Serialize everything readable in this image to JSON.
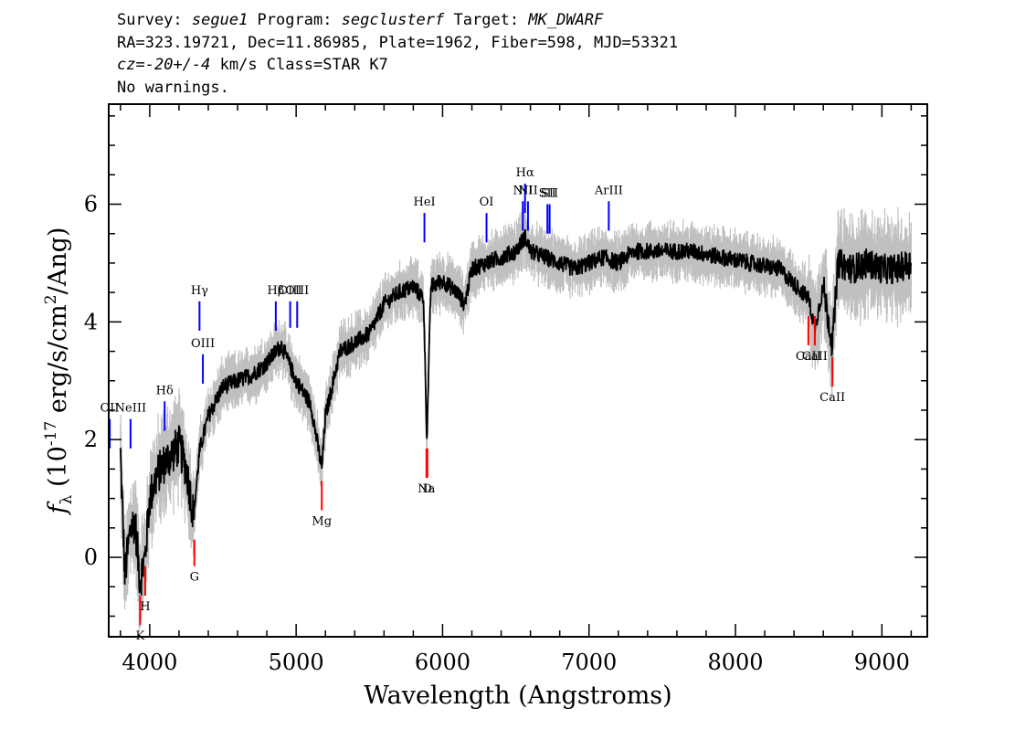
{
  "header": {
    "survey_label": "Survey: ",
    "survey": "segue1",
    "program_label": " Program: ",
    "program": "segclusterf",
    "target_label": " Target: ",
    "target": "MK_DWARF",
    "line2": "RA=323.19721, Dec=11.86985, Plate=1962, Fiber=598, MJD=53321",
    "cz_label": "cz",
    "cz_eq": "=",
    "cz_value": "-20+/-4",
    "cz_rest": " km/s Class=STAR K7",
    "warnings": "No warnings."
  },
  "chart_data": {
    "type": "line",
    "xlabel": "Wavelength (Angstroms)",
    "ylabel_prefix": "f",
    "ylabel_sub": "λ",
    "ylabel_rest": " (10",
    "ylabel_exp": "-17",
    "ylabel_units": " erg/s/cm",
    "ylabel_sq": "2",
    "ylabel_end": "/Ang)",
    "xlim": [
      3720,
      9310
    ],
    "ylim": [
      -1.35,
      7.7
    ],
    "xticks": [
      4000,
      5000,
      6000,
      7000,
      8000,
      9000
    ],
    "xtick_labels": [
      "4000",
      "5000",
      "6000",
      "7000",
      "8000",
      "9000"
    ],
    "yticks": [
      0,
      2,
      4,
      6
    ],
    "ytick_labels": [
      "0",
      "2",
      "4",
      "6"
    ],
    "colors": {
      "flux": "#000000",
      "error": "#c0c0c0",
      "emission": "#0000ff",
      "absorption": "#ff0000"
    },
    "flux_anchors": [
      [
        3800,
        1.75
      ],
      [
        3830,
        -0.3
      ],
      [
        3870,
        0.5
      ],
      [
        3900,
        0.6
      ],
      [
        3933,
        -0.4
      ],
      [
        3968,
        0.0
      ],
      [
        4000,
        1.0
      ],
      [
        4050,
        1.4
      ],
      [
        4100,
        1.6
      ],
      [
        4200,
        1.9
      ],
      [
        4250,
        1.5
      ],
      [
        4300,
        0.7
      ],
      [
        4340,
        1.8
      ],
      [
        4400,
        2.4
      ],
      [
        4500,
        2.9
      ],
      [
        4600,
        3.0
      ],
      [
        4700,
        3.1
      ],
      [
        4800,
        3.3
      ],
      [
        4861,
        3.5
      ],
      [
        4900,
        3.6
      ],
      [
        4950,
        3.3
      ],
      [
        5000,
        3.0
      ],
      [
        5100,
        2.6
      ],
      [
        5175,
        1.5
      ],
      [
        5200,
        2.4
      ],
      [
        5300,
        3.5
      ],
      [
        5500,
        3.8
      ],
      [
        5600,
        4.3
      ],
      [
        5700,
        4.5
      ],
      [
        5800,
        4.6
      ],
      [
        5870,
        4.4
      ],
      [
        5893,
        2.0
      ],
      [
        5920,
        4.6
      ],
      [
        6000,
        4.7
      ],
      [
        6100,
        4.5
      ],
      [
        6150,
        4.3
      ],
      [
        6200,
        4.9
      ],
      [
        6300,
        5.0
      ],
      [
        6400,
        5.1
      ],
      [
        6500,
        5.2
      ],
      [
        6563,
        5.45
      ],
      [
        6600,
        5.2
      ],
      [
        6700,
        5.1
      ],
      [
        6800,
        5.0
      ],
      [
        6900,
        4.9
      ],
      [
        7000,
        5.0
      ],
      [
        7100,
        5.1
      ],
      [
        7200,
        5.0
      ],
      [
        7300,
        5.2
      ],
      [
        7500,
        5.2
      ],
      [
        7700,
        5.2
      ],
      [
        7900,
        5.1
      ],
      [
        8100,
        5.0
      ],
      [
        8300,
        4.9
      ],
      [
        8498,
        4.4
      ],
      [
        8542,
        3.9
      ],
      [
        8600,
        4.6
      ],
      [
        8662,
        3.6
      ],
      [
        8700,
        5.0
      ],
      [
        8800,
        4.9
      ],
      [
        8900,
        5.0
      ],
      [
        9000,
        4.9
      ],
      [
        9100,
        4.9
      ],
      [
        9200,
        5.0
      ]
    ],
    "emission_lines": [
      {
        "label": "OII",
        "x": 3727,
        "y0": 1.85,
        "y1": 2.35
      },
      {
        "label": "NeIII",
        "x": 3869,
        "y0": 1.85,
        "y1": 2.35
      },
      {
        "label": "Hδ",
        "x": 4102,
        "y0": 2.15,
        "y1": 2.65
      },
      {
        "label": "Hγ",
        "x": 4340,
        "y0": 3.85,
        "y1": 4.35
      },
      {
        "label": "OIII",
        "x": 4363,
        "y0": 2.95,
        "y1": 3.45
      },
      {
        "label": "Hβ",
        "x": 4861,
        "y0": 3.85,
        "y1": 4.35
      },
      {
        "label": "OIII",
        "x": 4959,
        "y0": 3.9,
        "y1": 4.35
      },
      {
        "label": "OIII",
        "x": 5007,
        "y0": 3.9,
        "y1": 4.35
      },
      {
        "label": "HeI",
        "x": 5876,
        "y0": 5.35,
        "y1": 5.85
      },
      {
        "label": "OI",
        "x": 6300,
        "y0": 5.35,
        "y1": 5.85
      },
      {
        "label": "NII",
        "x": 6548,
        "y0": 5.55,
        "y1": 6.05
      },
      {
        "label": "Hα",
        "x": 6563,
        "y0": 5.85,
        "y1": 6.35
      },
      {
        "label": "NII",
        "x": 6583,
        "y0": 5.55,
        "y1": 6.05
      },
      {
        "label": "SII",
        "x": 6716,
        "y0": 5.5,
        "y1": 6.0
      },
      {
        "label": "SII",
        "x": 6731,
        "y0": 5.5,
        "y1": 6.0
      },
      {
        "label": "ArIII",
        "x": 7135,
        "y0": 5.55,
        "y1": 6.05
      }
    ],
    "absorption_lines": [
      {
        "label": "K",
        "x": 3934,
        "y0": -1.15,
        "y1": -0.65
      },
      {
        "label": "H",
        "x": 3969,
        "y0": -0.65,
        "y1": -0.15
      },
      {
        "label": "G",
        "x": 4305,
        "y0": -0.15,
        "y1": 0.3
      },
      {
        "label": "Mg",
        "x": 5175,
        "y0": 0.8,
        "y1": 1.3
      },
      {
        "label": "Na",
        "x": 5890,
        "y0": 1.35,
        "y1": 1.85
      },
      {
        "label": "D",
        "x": 5896,
        "y0": 1.35,
        "y1": 1.85
      },
      {
        "label": "CaII",
        "x": 8498,
        "y0": 3.6,
        "y1": 4.1
      },
      {
        "label": "CaII",
        "x": 8542,
        "y0": 3.6,
        "y1": 4.1
      },
      {
        "label": "CaII",
        "x": 8662,
        "y0": 2.9,
        "y1": 3.4
      }
    ]
  }
}
